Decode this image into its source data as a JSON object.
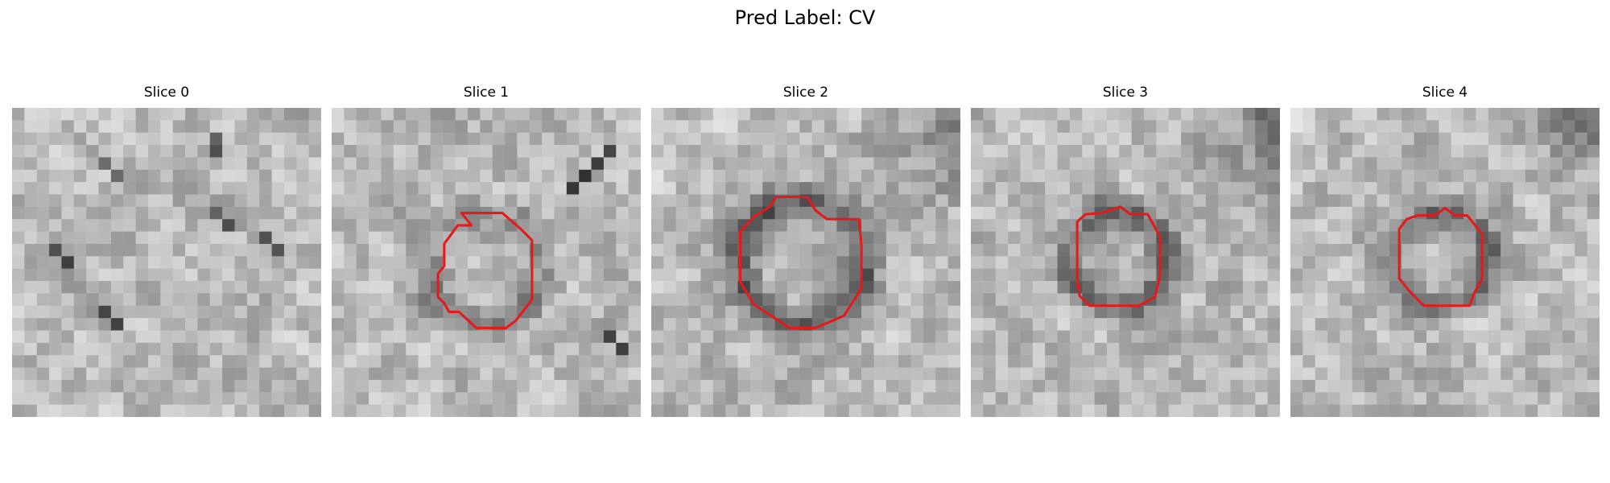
{
  "figure": {
    "title": "Pred Label: CV"
  },
  "panels": [
    {
      "title": "Slice 0",
      "seed": 11,
      "dark_blob": false,
      "outline": false,
      "contour_color": "#e41a1c"
    },
    {
      "title": "Slice 1",
      "seed": 23,
      "dark_blob": false,
      "outline": true,
      "contour_color": "#e41a1c"
    },
    {
      "title": "Slice 2",
      "seed": 37,
      "dark_blob": true,
      "outline": true,
      "contour_color": "#e41a1c"
    },
    {
      "title": "Slice 3",
      "seed": 41,
      "dark_blob": true,
      "outline": true,
      "contour_color": "#e41a1c"
    },
    {
      "title": "Slice 4",
      "seed": 53,
      "dark_blob": true,
      "outline": true,
      "contour_color": "#e41a1c"
    }
  ]
}
